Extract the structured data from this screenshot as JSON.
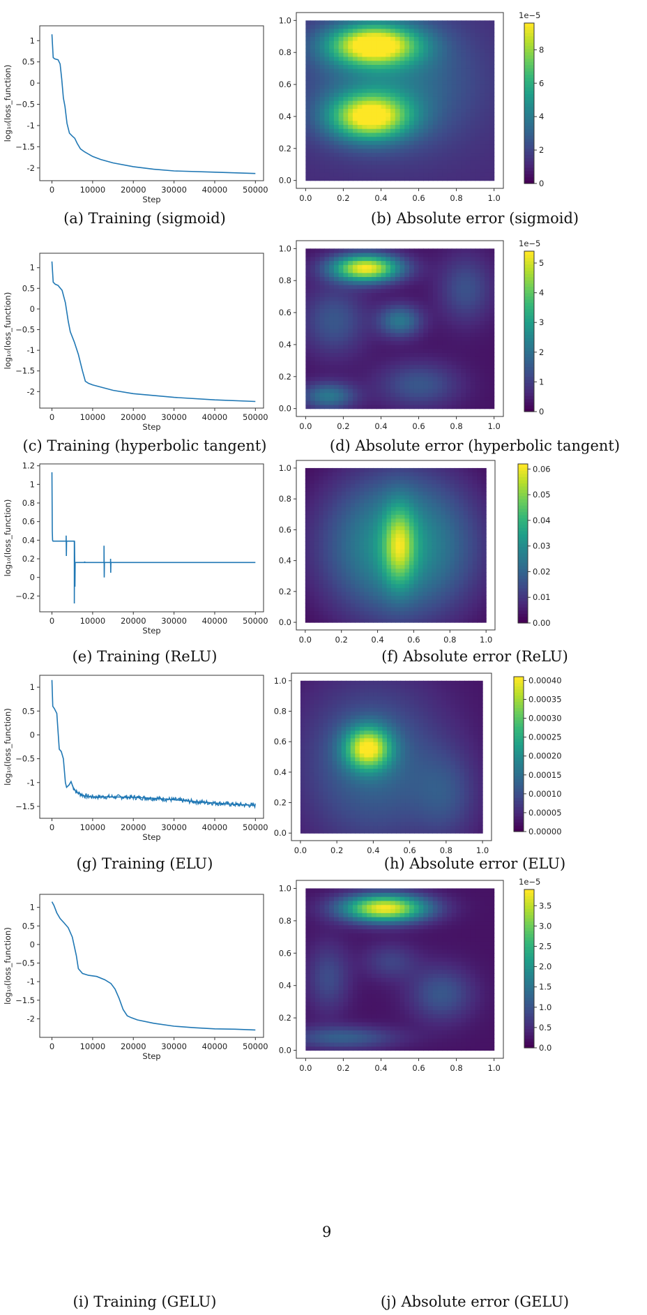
{
  "page_number": "9",
  "chart_data": [
    {
      "type": "line",
      "caption": "(a) Training (sigmoid)",
      "xlabel": "Step",
      "ylabel": "log₁₀(loss_function)",
      "xlim": [
        -3000,
        52000
      ],
      "ylim": [
        -2.3,
        1.35
      ],
      "xticks": [
        0,
        10000,
        20000,
        30000,
        40000,
        50000
      ],
      "yticks": [
        -2.0,
        -1.5,
        -1.0,
        -0.5,
        0.0,
        0.5,
        1.0
      ],
      "color": "#1f77b4",
      "series": [
        {
          "x": [
            0,
            300,
            700,
            1500,
            2000,
            2400,
            2800,
            3200,
            3700,
            4300,
            5000,
            5600,
            6200,
            7000,
            8000,
            10000,
            12000,
            15000,
            20000,
            25000,
            30000,
            40000,
            50000
          ],
          "y": [
            1.15,
            0.6,
            0.57,
            0.55,
            0.45,
            0.1,
            -0.35,
            -0.55,
            -0.95,
            -1.18,
            -1.25,
            -1.3,
            -1.42,
            -1.55,
            -1.62,
            -1.73,
            -1.8,
            -1.88,
            -1.97,
            -2.03,
            -2.07,
            -2.1,
            -2.13
          ]
        }
      ]
    },
    {
      "type": "heatmap",
      "caption": "(b) Absolute error (sigmoid)",
      "xlim": [
        0,
        1
      ],
      "ylim": [
        0,
        1
      ],
      "xticks": [
        0.0,
        0.2,
        0.4,
        0.6,
        0.8,
        1.0
      ],
      "yticks": [
        0.0,
        0.2,
        0.4,
        0.6,
        0.8,
        1.0
      ],
      "colorbar": {
        "min": 0,
        "max": 9.6,
        "ticks": [
          0,
          2,
          4,
          6,
          8
        ],
        "exponent": "1e−5"
      },
      "background_level": 0.12,
      "blobs": [
        {
          "cx": 0.36,
          "cy": 0.85,
          "sx": 0.17,
          "sy": 0.09,
          "v": 0.88
        },
        {
          "cx": 0.34,
          "cy": 0.4,
          "sx": 0.15,
          "sy": 0.1,
          "v": 0.82
        },
        {
          "cx": 0.45,
          "cy": 0.62,
          "sx": 0.3,
          "sy": 0.28,
          "v": 0.28
        }
      ]
    },
    {
      "type": "line",
      "caption": "(c) Training (hyperbolic tangent)",
      "xlabel": "Step",
      "ylabel": "log₁₀(loss_function)",
      "xlim": [
        -3000,
        52000
      ],
      "ylim": [
        -2.4,
        1.35
      ],
      "xticks": [
        0,
        10000,
        20000,
        30000,
        40000,
        50000
      ],
      "yticks": [
        -2.0,
        -1.5,
        -1.0,
        -0.5,
        0.0,
        0.5,
        1.0
      ],
      "color": "#1f77b4",
      "series": [
        {
          "x": [
            0,
            300,
            800,
            1500,
            2500,
            3300,
            4000,
            4500,
            5500,
            6500,
            7500,
            8200,
            9000,
            10000,
            15000,
            20000,
            30000,
            40000,
            50000
          ],
          "y": [
            1.15,
            0.65,
            0.6,
            0.57,
            0.45,
            0.15,
            -0.3,
            -0.55,
            -0.8,
            -1.1,
            -1.5,
            -1.75,
            -1.8,
            -1.84,
            -1.97,
            -2.05,
            -2.14,
            -2.2,
            -2.24
          ]
        }
      ]
    },
    {
      "type": "heatmap",
      "caption": "(d) Absolute error (hyperbolic tangent)",
      "xlim": [
        0,
        1
      ],
      "ylim": [
        0,
        1
      ],
      "xticks": [
        0.0,
        0.2,
        0.4,
        0.6,
        0.8,
        1.0
      ],
      "yticks": [
        0.0,
        0.2,
        0.4,
        0.6,
        0.8,
        1.0
      ],
      "colorbar": {
        "min": 0,
        "max": 5.4,
        "ticks": [
          0,
          1,
          2,
          3,
          4,
          5
        ],
        "exponent": "1e−5"
      },
      "background_level": 0.05,
      "blobs": [
        {
          "cx": 0.32,
          "cy": 0.88,
          "sx": 0.13,
          "sy": 0.06,
          "v": 0.95
        },
        {
          "cx": 0.5,
          "cy": 0.55,
          "sx": 0.08,
          "sy": 0.07,
          "v": 0.35
        },
        {
          "cx": 0.12,
          "cy": 0.08,
          "sx": 0.1,
          "sy": 0.06,
          "v": 0.35
        },
        {
          "cx": 0.15,
          "cy": 0.55,
          "sx": 0.12,
          "sy": 0.15,
          "v": 0.22
        },
        {
          "cx": 0.85,
          "cy": 0.75,
          "sx": 0.1,
          "sy": 0.15,
          "v": 0.2
        },
        {
          "cx": 0.6,
          "cy": 0.15,
          "sx": 0.15,
          "sy": 0.1,
          "v": 0.22
        }
      ]
    },
    {
      "type": "line",
      "caption": "(e) Training (ReLU)",
      "xlabel": "Step",
      "ylabel": "log₁₀(loss_function)",
      "xlim": [
        -3000,
        52000
      ],
      "ylim": [
        -0.37,
        1.22
      ],
      "xticks": [
        0,
        10000,
        20000,
        30000,
        40000,
        50000
      ],
      "yticks": [
        -0.2,
        0.0,
        0.2,
        0.4,
        0.6,
        0.8,
        1.0,
        1.2
      ],
      "color": "#1f77b4",
      "series": [
        {
          "x": [
            0,
            80,
            150,
            250,
            400,
            3500,
            3500,
            3550,
            3600,
            3650,
            5500,
            5500,
            5550,
            5600,
            5650,
            5700,
            5800,
            8000,
            8050,
            8100,
            12800,
            12800,
            12850,
            12900,
            12950,
            14400,
            14400,
            14450,
            14500,
            14550,
            50000
          ],
          "y": [
            1.13,
            0.5,
            0.4,
            0.39,
            0.39,
            0.39,
            0.45,
            0.23,
            0.39,
            0.39,
            0.39,
            -0.28,
            0.39,
            0.16,
            -0.1,
            0.16,
            0.16,
            0.16,
            0.17,
            0.16,
            0.16,
            0.34,
            0.0,
            0.16,
            0.16,
            0.16,
            0.2,
            0.05,
            0.16,
            0.16,
            0.16
          ]
        }
      ]
    },
    {
      "type": "heatmap",
      "caption": "(f) Absolute error (ReLU)",
      "xlim": [
        0,
        1
      ],
      "ylim": [
        0,
        1
      ],
      "xticks": [
        0.0,
        0.2,
        0.4,
        0.6,
        0.8,
        1.0
      ],
      "yticks": [
        0.0,
        0.2,
        0.4,
        0.6,
        0.8,
        1.0
      ],
      "colorbar": {
        "min": 0,
        "max": 0.062,
        "ticks": [
          0.0,
          0.01,
          0.02,
          0.03,
          0.04,
          0.05,
          0.06
        ],
        "tick_labels": [
          "0.00",
          "0.01",
          "0.02",
          "0.03",
          "0.04",
          "0.05",
          "0.06"
        ],
        "exponent": ""
      },
      "background_level": 0.0,
      "blobs": [
        {
          "cx": 0.52,
          "cy": 0.5,
          "sx": 0.3,
          "sy": 0.34,
          "v": 0.55
        },
        {
          "cx": 0.52,
          "cy": 0.5,
          "sx": 0.06,
          "sy": 0.18,
          "v": 0.45
        }
      ]
    },
    {
      "type": "line",
      "caption": "(g) Training (ELU)",
      "xlabel": "Step",
      "ylabel": "log₁₀(loss_function)",
      "xlim": [
        -3000,
        52000
      ],
      "ylim": [
        -1.75,
        1.25
      ],
      "xticks": [
        0,
        10000,
        20000,
        30000,
        40000,
        50000
      ],
      "yticks": [
        -1.5,
        -1.0,
        -0.5,
        0.0,
        0.5,
        1.0
      ],
      "color": "#1f77b4",
      "noise": 0.05,
      "series": [
        {
          "x": [
            0,
            200,
            600,
            1200,
            1800,
            2300,
            2800,
            3300,
            3600,
            4200,
            4700,
            5200,
            6000,
            8000,
            10000,
            15000,
            20000,
            25000,
            30000,
            35000,
            40000,
            45000,
            50000
          ],
          "y": [
            1.15,
            0.6,
            0.55,
            0.45,
            -0.3,
            -0.35,
            -0.5,
            -1.0,
            -1.1,
            -1.05,
            -0.98,
            -1.1,
            -1.2,
            -1.28,
            -1.3,
            -1.3,
            -1.31,
            -1.33,
            -1.36,
            -1.4,
            -1.43,
            -1.46,
            -1.48
          ]
        }
      ]
    },
    {
      "type": "heatmap",
      "caption": "(h) Absolute error (ELU)",
      "xlim": [
        0,
        1
      ],
      "ylim": [
        0,
        1
      ],
      "xticks": [
        0.0,
        0.2,
        0.4,
        0.6,
        0.8,
        1.0
      ],
      "yticks": [
        0.0,
        0.2,
        0.4,
        0.6,
        0.8,
        1.0
      ],
      "colorbar": {
        "min": 0,
        "max": 0.00041,
        "ticks": [
          0.0,
          5e-05,
          0.0001,
          0.00015,
          0.0002,
          0.00025,
          0.0003,
          0.00035,
          0.0004
        ],
        "tick_labels": [
          "0.00000",
          "0.00005",
          "0.00010",
          "0.00015",
          "0.00020",
          "0.00025",
          "0.00030",
          "0.00035",
          "0.00040"
        ],
        "exponent": ""
      },
      "background_level": 0.05,
      "blobs": [
        {
          "cx": 0.37,
          "cy": 0.56,
          "sx": 0.09,
          "sy": 0.1,
          "v": 0.75
        },
        {
          "cx": 0.4,
          "cy": 0.45,
          "sx": 0.28,
          "sy": 0.38,
          "v": 0.28
        },
        {
          "cx": 0.8,
          "cy": 0.25,
          "sx": 0.12,
          "sy": 0.2,
          "v": 0.15
        }
      ]
    },
    {
      "type": "line",
      "caption": "(i) Training (GELU)",
      "xlabel": "Step",
      "ylabel": "log₁₀(loss_function)",
      "xlim": [
        -3000,
        52000
      ],
      "ylim": [
        -2.5,
        1.35
      ],
      "xticks": [
        0,
        10000,
        20000,
        30000,
        40000,
        50000
      ],
      "yticks": [
        -2.0,
        -1.5,
        -1.0,
        -0.5,
        0.0,
        0.5,
        1.0
      ],
      "color": "#1f77b4",
      "series": [
        {
          "x": [
            0,
            500,
            1200,
            2000,
            3000,
            4000,
            5000,
            6000,
            6500,
            7500,
            9000,
            11000,
            13000,
            14500,
            15500,
            16500,
            17500,
            18500,
            19500,
            21000,
            25000,
            30000,
            35000,
            40000,
            45000,
            50000
          ],
          "y": [
            1.15,
            1.05,
            0.85,
            0.7,
            0.58,
            0.45,
            0.2,
            -0.3,
            -0.65,
            -0.78,
            -0.83,
            -0.86,
            -0.95,
            -1.05,
            -1.2,
            -1.45,
            -1.75,
            -1.92,
            -1.97,
            -2.03,
            -2.12,
            -2.2,
            -2.24,
            -2.27,
            -2.28,
            -2.3
          ]
        }
      ]
    },
    {
      "type": "heatmap",
      "caption": "(j) Absolute error (GELU)",
      "xlim": [
        0,
        1
      ],
      "ylim": [
        0,
        1
      ],
      "xticks": [
        0.0,
        0.2,
        0.4,
        0.6,
        0.8,
        1.0
      ],
      "yticks": [
        0.0,
        0.2,
        0.4,
        0.6,
        0.8,
        1.0
      ],
      "colorbar": {
        "min": 0,
        "max": 3.9,
        "ticks": [
          0.0,
          0.5,
          1.0,
          1.5,
          2.0,
          2.5,
          3.0,
          3.5
        ],
        "tick_labels": [
          "0.0",
          "0.5",
          "1.0",
          "1.5",
          "2.0",
          "2.5",
          "3.0",
          "3.5"
        ],
        "exponent": "1e−5"
      },
      "background_level": 0.05,
      "blobs": [
        {
          "cx": 0.42,
          "cy": 0.88,
          "sx": 0.16,
          "sy": 0.06,
          "v": 0.95
        },
        {
          "cx": 0.2,
          "cy": 0.08,
          "sx": 0.2,
          "sy": 0.05,
          "v": 0.25
        },
        {
          "cx": 0.72,
          "cy": 0.35,
          "sx": 0.12,
          "sy": 0.12,
          "v": 0.22
        },
        {
          "cx": 0.12,
          "cy": 0.45,
          "sx": 0.08,
          "sy": 0.15,
          "v": 0.18
        },
        {
          "cx": 0.45,
          "cy": 0.55,
          "sx": 0.1,
          "sy": 0.08,
          "v": 0.15
        }
      ]
    }
  ]
}
